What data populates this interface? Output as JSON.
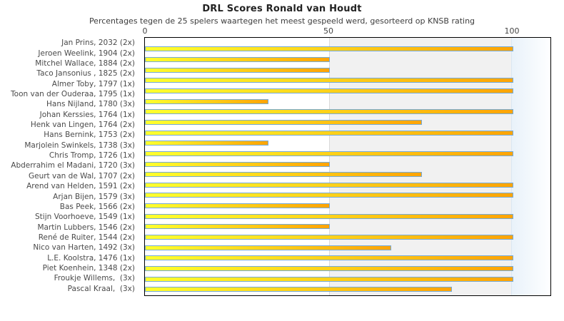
{
  "chart": {
    "title": "DRL Scores Ronald van Houdt",
    "subtitle": "Percentages tegen de 25 spelers waartegen het meest gespeeld werd, gesorteerd op KNSB rating"
  },
  "chart_data": {
    "type": "bar",
    "orientation": "horizontal",
    "title": "DRL Scores Ronald van Houdt",
    "subtitle": "Percentages tegen de 25 spelers waartegen het meest gespeeld werd, gesorteerd op KNSB rating",
    "xlabel": "",
    "ylabel": "",
    "xlim": [
      0,
      100
    ],
    "x_ticks": [
      0,
      50,
      100
    ],
    "axis_position": "top",
    "grid": "vertical gridlines at 50 and 100",
    "legend": "none",
    "categories": [
      "Jan Prins, 2032 (2x)",
      "Jeroen Weelink, 1904 (2x)",
      "Mitchel Wallace, 1884 (2x)",
      "Taco Jansonius , 1825 (2x)",
      "Almer Toby, 1797 (1x)",
      "Toon van der Ouderaa, 1795 (1x)",
      "Hans Nijland, 1780 (3x)",
      "Johan Kerssies, 1764 (1x)",
      "Henk van Lingen, 1764 (2x)",
      "Hans Bernink, 1753 (2x)",
      "Marjolein Swinkels, 1738 (3x)",
      "Chris Tromp, 1726 (1x)",
      "Abderrahim el Madani, 1720 (3x)",
      "Geurt van de Wal, 1707 (2x)",
      "Arend van Helden, 1591 (2x)",
      "Arjan Bijen, 1579 (3x)",
      "Bas Peek, 1566 (2x)",
      "Stijn Voorhoeve, 1549 (1x)",
      "Martin Lubbers, 1546 (2x)",
      "René de Ruiter, 1544 (2x)",
      "Nico van Harten, 1492 (3x)",
      "L.E. Koolstra, 1476 (1x)",
      "Piet Koenhein, 1348 (2x)",
      "Froukje Willems,  (3x)",
      "Pascal Kraal,  (3x)"
    ],
    "values": [
      0,
      100,
      50,
      50,
      100,
      100,
      33.3,
      100,
      75,
      100,
      33.3,
      100,
      50,
      75,
      100,
      100,
      50,
      100,
      50,
      100,
      66.7,
      100,
      100,
      100,
      83.3
    ]
  },
  "colors": {
    "bar_gradient_start": "#ffff2e",
    "bar_gradient_end": "#ffa405",
    "bar_border": "#74aad8",
    "band_white": "#ffffff",
    "band_gray": "#f1f1f1",
    "band_blue": "#e9f2fa",
    "gridline": "#d9d9d9",
    "plot_border": "#000000",
    "title_text": "#222222",
    "label_text": "#4a4a4a"
  }
}
